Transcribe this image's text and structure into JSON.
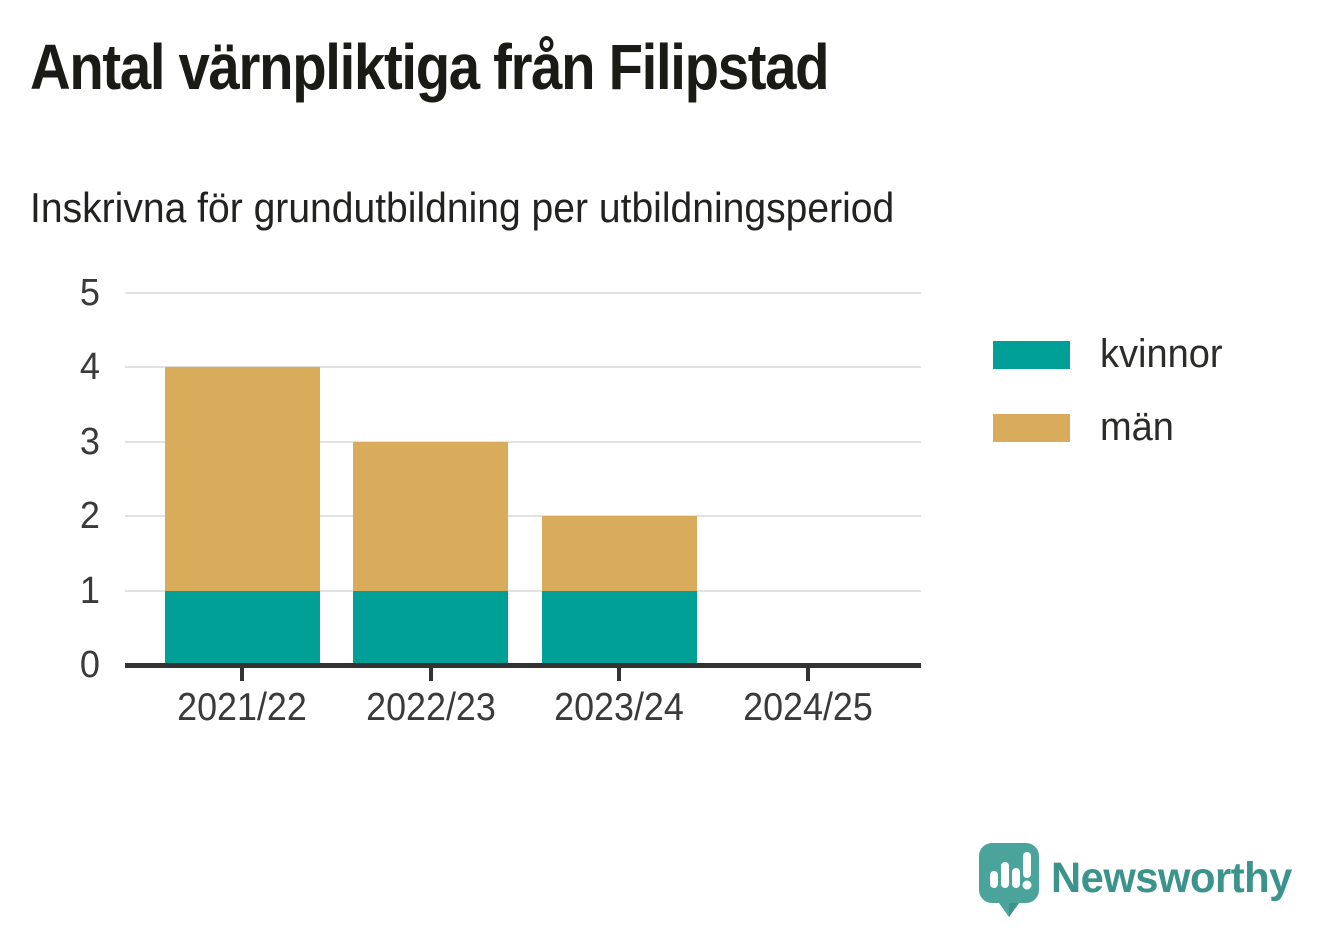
{
  "header": {
    "title": "Antal värnpliktiga från Filipstad",
    "subtitle": "Inskrivna för grundutbildning per utbildningsperiod"
  },
  "chart_data": {
    "type": "bar",
    "stacked": true,
    "title": "Antal värnpliktiga från Filipstad",
    "subtitle": "Inskrivna för grundutbildning per utbildningsperiod",
    "categories": [
      "2021/22",
      "2022/23",
      "2023/24",
      "2024/25"
    ],
    "series": [
      {
        "name": "kvinnor",
        "color": "#00A096",
        "values": [
          1,
          1,
          1,
          0
        ]
      },
      {
        "name": "män",
        "color": "#D9AC5C",
        "values": [
          3,
          2,
          1,
          0
        ]
      }
    ],
    "totals": [
      4,
      3,
      2,
      0
    ],
    "ylim": [
      0,
      5
    ],
    "yticks": [
      0,
      1,
      2,
      3,
      4,
      5
    ],
    "xlabel": "",
    "ylabel": "",
    "grid": true,
    "legend_position": "right"
  },
  "colors": {
    "kvinnor": "#00A096",
    "man": "#D9AC5C",
    "axis": "#333333",
    "gridline": "#E2E2E2",
    "title_text": "#1A1A17",
    "label_text": "#3A3A3A",
    "brand_teal": "#3C938C",
    "brand_icon_teal": "#4BA49C"
  },
  "branding": {
    "logo_text": "Newsworthy",
    "logo_icon": "newsworthy-speech-bubble-chart-icon"
  }
}
